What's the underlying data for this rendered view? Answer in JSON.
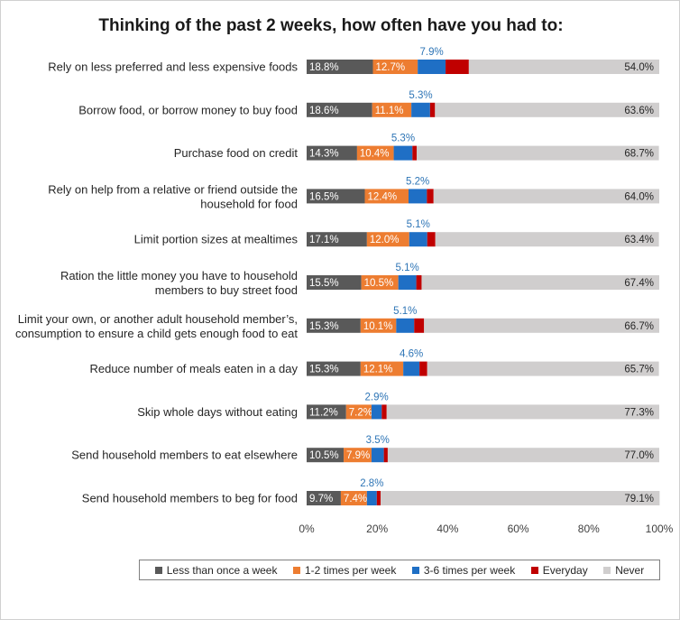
{
  "chart_data": {
    "type": "bar",
    "orientation": "horizontal",
    "stacked": true,
    "title": "Thinking of the past 2 weeks, how often have you had to:",
    "categories": [
      [
        "Rely on less preferred and less expensive foods"
      ],
      [
        "Borrow food, or borrow money to buy food"
      ],
      [
        "Purchase food on credit"
      ],
      [
        "Rely on help from a relative or friend outside the",
        "household for food"
      ],
      [
        "Limit portion sizes at mealtimes"
      ],
      [
        "Ration the little money you have to household",
        "members to buy street food"
      ],
      [
        "Limit your own, or another adult household member’s,",
        "consumption to ensure a child gets enough food to eat"
      ],
      [
        "Reduce number of meals eaten in a day"
      ],
      [
        "Skip whole days without eating"
      ],
      [
        "Send household members to eat elsewhere"
      ],
      [
        "Send household members to beg for food"
      ]
    ],
    "series": [
      {
        "name": "Less than once a week",
        "color": "#595959",
        "label_color": "#ffffff",
        "label_pos": "inside",
        "values": [
          18.8,
          18.6,
          14.3,
          16.5,
          17.1,
          15.5,
          15.3,
          15.3,
          11.2,
          10.5,
          9.7
        ]
      },
      {
        "name": "1-2 times per week",
        "color": "#ed7d31",
        "label_color": "#ffffff",
        "label_pos": "inside",
        "values": [
          12.7,
          11.1,
          10.4,
          12.4,
          12.0,
          10.5,
          10.1,
          12.1,
          7.2,
          7.9,
          7.4
        ]
      },
      {
        "name": "3-6 times per week",
        "color": "#1f6fc5",
        "label_color": "#2e75b6",
        "label_pos": "above",
        "values": [
          7.9,
          5.3,
          5.3,
          5.2,
          5.1,
          5.1,
          5.1,
          4.6,
          2.9,
          3.5,
          2.8
        ]
      },
      {
        "name": "Everyday",
        "color": "#c00000",
        "label_color": "#c0504d",
        "label_pos": "right",
        "values": [
          6.6,
          1.4,
          1.2,
          1.9,
          2.3,
          1.5,
          2.8,
          2.2,
          1.4,
          1.1,
          1.1
        ]
      },
      {
        "name": "Never",
        "color": "#d0cece",
        "label_color": "#262626",
        "label_pos": "end",
        "values": [
          54.0,
          63.6,
          68.7,
          64.0,
          63.4,
          67.4,
          66.7,
          65.7,
          77.3,
          77.0,
          79.1
        ]
      }
    ],
    "xlim": [
      0,
      100
    ],
    "xticks": [
      "0%",
      "20%",
      "40%",
      "60%",
      "80%",
      "100%"
    ],
    "value_suffix": "%",
    "grid": false,
    "legend": "bottom"
  }
}
